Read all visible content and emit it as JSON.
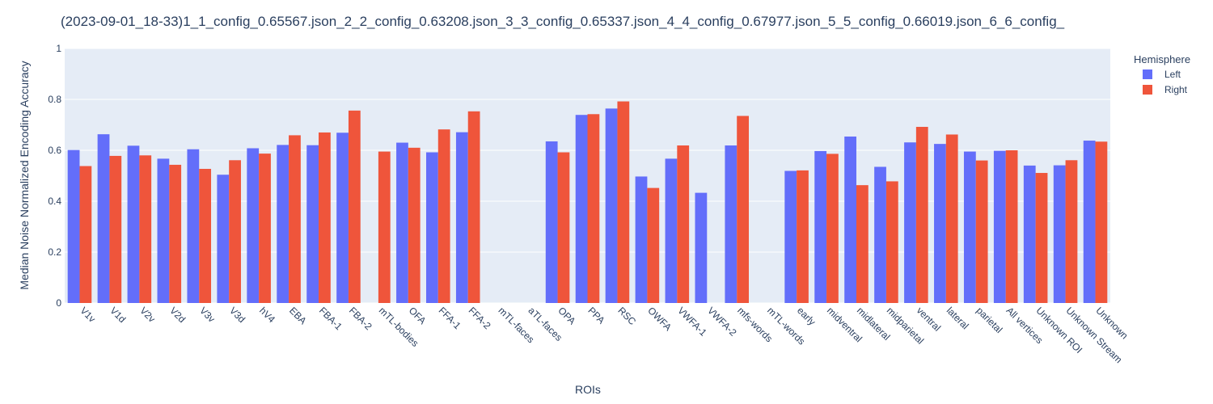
{
  "chart_data": {
    "type": "bar",
    "title": "(2023-09-01_18-33)1_1_config_0.65567.json_2_2_config_0.63208.json_3_3_config_0.65337.json_4_4_config_0.67977.json_5_5_config_0.66019.json_6_6_config_",
    "xlabel": "ROIs",
    "ylabel": "Median Noise Normalized Encoding Accuracy",
    "ylim": [
      0,
      1
    ],
    "yticks": [
      "0",
      "0.2",
      "0.4",
      "0.6",
      "0.8",
      "1"
    ],
    "grid": true,
    "legend": {
      "title": "Hemisphere",
      "position": "top-right"
    },
    "categories": [
      "V1v",
      "V1d",
      "V2v",
      "V2d",
      "V3v",
      "V3d",
      "hV4",
      "EBA",
      "FBA-1",
      "FBA-2",
      "mTL-bodies",
      "OFA",
      "FFA-1",
      "FFA-2",
      "mTL-faces",
      "aTL-faces",
      "OPA",
      "PPA",
      "RSC",
      "OWFA",
      "VWFA-1",
      "VWFA-2",
      "mfs-words",
      "mTL-words",
      "early",
      "midventral",
      "midlateral",
      "midparietal",
      "ventral",
      "lateral",
      "parietal",
      "All vertices",
      "Unknown ROI",
      "Unknown Stream",
      "Unknown"
    ],
    "series": [
      {
        "name": "Left",
        "color": "#636efa",
        "values": [
          0.601,
          0.663,
          0.618,
          0.567,
          0.604,
          0.504,
          0.608,
          0.621,
          0.62,
          0.669,
          null,
          0.63,
          0.592,
          0.671,
          null,
          null,
          0.635,
          0.739,
          0.764,
          0.497,
          0.567,
          0.433,
          0.619,
          null,
          0.519,
          0.597,
          0.654,
          0.535,
          0.631,
          0.625,
          0.595,
          0.598,
          0.54,
          0.541,
          0.638
        ]
      },
      {
        "name": "Right",
        "color": "#ef553b",
        "values": [
          0.538,
          0.578,
          0.58,
          0.543,
          0.527,
          0.561,
          0.587,
          0.659,
          0.67,
          0.756,
          0.595,
          0.61,
          0.682,
          0.753,
          null,
          null,
          0.592,
          0.742,
          0.792,
          0.452,
          0.619,
          null,
          0.735,
          null,
          0.521,
          0.586,
          0.463,
          0.478,
          0.692,
          0.662,
          0.56,
          0.6,
          0.511,
          0.561,
          0.634
        ]
      }
    ]
  }
}
